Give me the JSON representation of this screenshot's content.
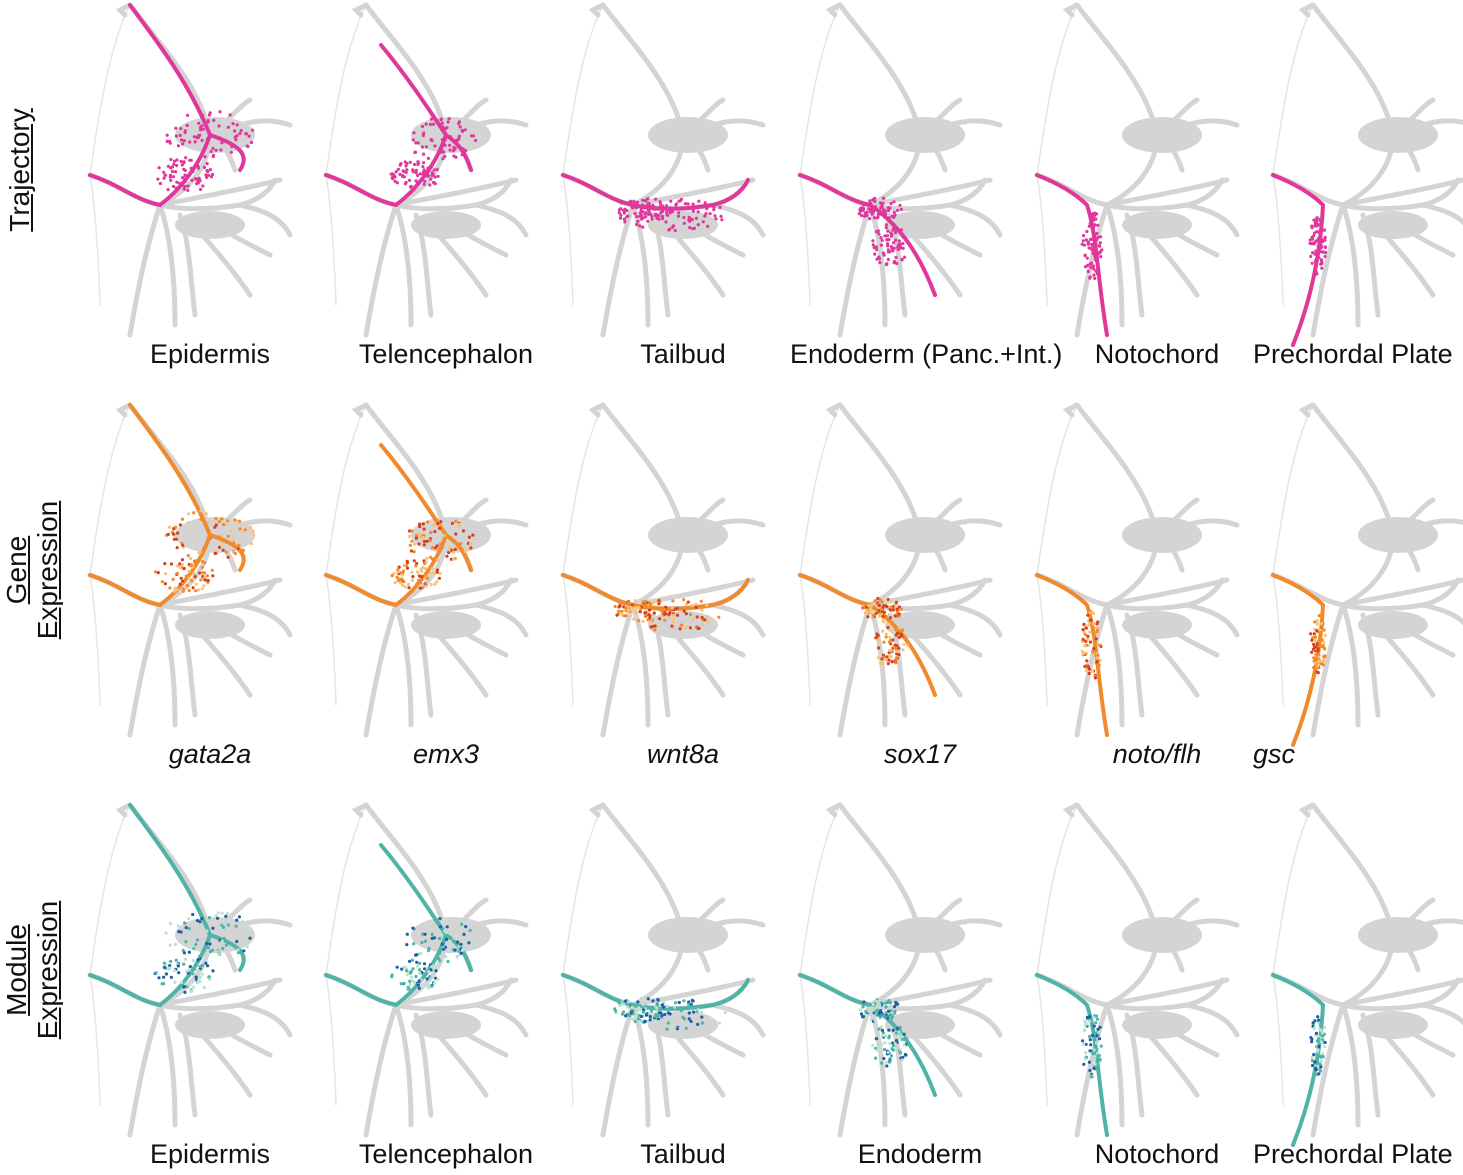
{
  "colors": {
    "background_cells": "#d4d4d4",
    "trajectory": "#e0379b",
    "gene_expression": [
      "#f7c27a",
      "#f08a2c",
      "#d8401c"
    ],
    "module_expression": [
      "#b8e3cf",
      "#4fb3a8",
      "#1f5fa8"
    ]
  },
  "rows": [
    {
      "label_lines": [
        "Trajectory"
      ],
      "type": "trajectory",
      "italic": false,
      "panels": [
        {
          "caption": "Epidermis",
          "highlight": "epidermis"
        },
        {
          "caption": "Telencephalon",
          "highlight": "telencephalon"
        },
        {
          "caption": "Tailbud",
          "highlight": "tailbud"
        },
        {
          "caption": "Endoderm (Panc.+Int.)",
          "highlight": "endoderm"
        },
        {
          "caption": "Notochord",
          "highlight": "notochord"
        },
        {
          "caption": "Prechordal Plate",
          "highlight": "prechordal"
        }
      ]
    },
    {
      "label_lines": [
        "Gene",
        "Expression"
      ],
      "type": "gene",
      "italic": true,
      "panels": [
        {
          "caption": "gata2a",
          "highlight": "epidermis"
        },
        {
          "caption": "emx3",
          "highlight": "telencephalon"
        },
        {
          "caption": "wnt8a",
          "highlight": "tailbud"
        },
        {
          "caption": "sox17",
          "highlight": "endoderm"
        },
        {
          "caption": "noto/flh",
          "highlight": "notochord"
        },
        {
          "caption": "gsc",
          "highlight": "prechordal"
        }
      ]
    },
    {
      "label_lines": [
        "Module",
        "Expression"
      ],
      "type": "module",
      "italic": false,
      "panels": [
        {
          "caption": "Epidermis",
          "highlight": "epidermis"
        },
        {
          "caption": "Telencephalon",
          "highlight": "telencephalon"
        },
        {
          "caption": "Tailbud",
          "highlight": "tailbud"
        },
        {
          "caption": "Endoderm",
          "highlight": "endoderm"
        },
        {
          "caption": "Notochord",
          "highlight": "notochord"
        },
        {
          "caption": "Prechordal Plate",
          "highlight": "prechordal"
        }
      ]
    }
  ]
}
